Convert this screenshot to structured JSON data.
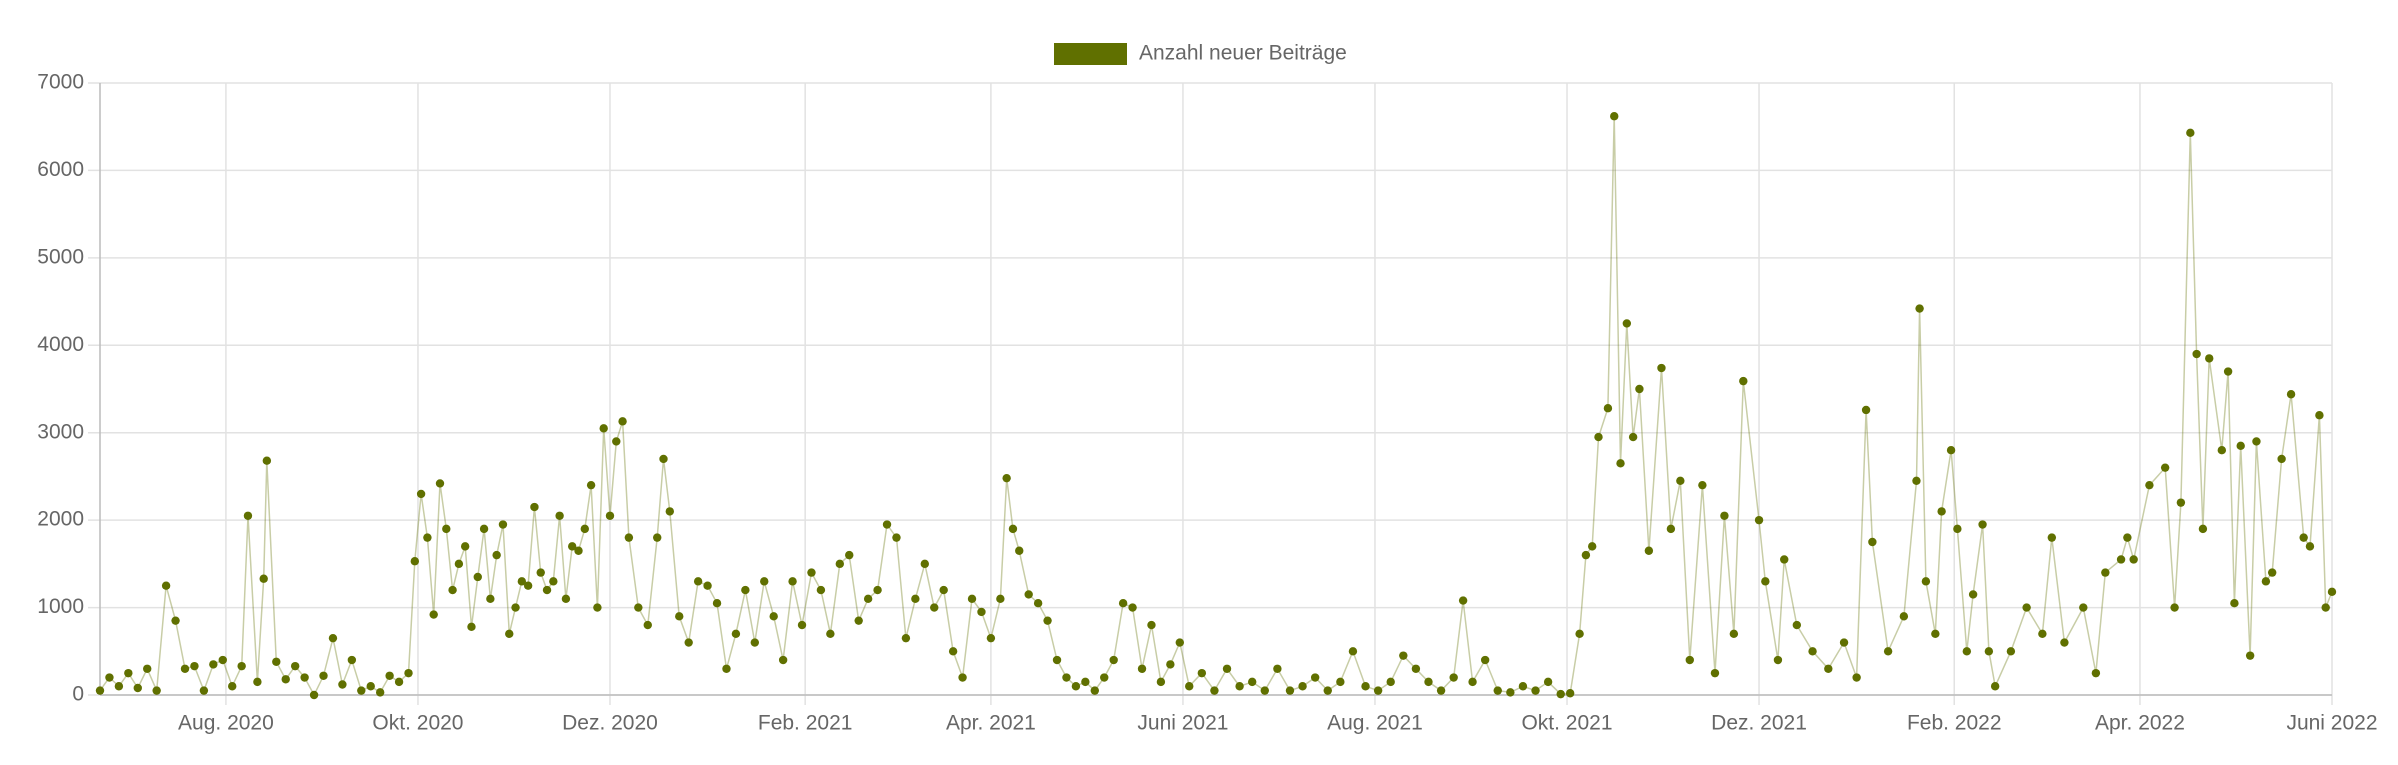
{
  "chart_data": {
    "type": "line",
    "legend": "top",
    "grid": true,
    "xlim": [
      0,
      709
    ],
    "xticks": [
      {
        "value": 40,
        "label": "Aug. 2020"
      },
      {
        "value": 101,
        "label": "Okt. 2020"
      },
      {
        "value": 162,
        "label": "Dez. 2020"
      },
      {
        "value": 224,
        "label": "Feb. 2021"
      },
      {
        "value": 283,
        "label": "Apr. 2021"
      },
      {
        "value": 344,
        "label": "Juni 2021"
      },
      {
        "value": 405,
        "label": "Aug. 2021"
      },
      {
        "value": 466,
        "label": "Okt. 2021"
      },
      {
        "value": 527,
        "label": "Dez. 2021"
      },
      {
        "value": 589,
        "label": "Feb. 2022"
      },
      {
        "value": 648,
        "label": "Apr. 2022"
      },
      {
        "value": 709,
        "label": "Juni 2022"
      }
    ],
    "ylim": [
      0,
      7000
    ],
    "yticks": [
      0,
      1000,
      2000,
      3000,
      4000,
      5000,
      6000,
      7000
    ],
    "x": [
      0,
      3,
      6,
      9,
      12,
      15,
      18,
      21,
      24,
      27,
      30,
      33,
      36,
      39,
      42,
      45,
      47,
      50,
      52,
      53,
      56,
      59,
      62,
      65,
      68,
      71,
      74,
      77,
      80,
      83,
      86,
      89,
      92,
      95,
      98,
      100,
      102,
      104,
      106,
      108,
      110,
      112,
      114,
      116,
      118,
      120,
      122,
      124,
      126,
      128,
      130,
      132,
      134,
      136,
      138,
      140,
      142,
      144,
      146,
      148,
      150,
      152,
      154,
      156,
      158,
      160,
      162,
      164,
      166,
      168,
      171,
      174,
      177,
      179,
      181,
      184,
      187,
      190,
      193,
      196,
      199,
      202,
      205,
      208,
      211,
      214,
      217,
      220,
      223,
      226,
      229,
      232,
      235,
      238,
      241,
      244,
      247,
      250,
      253,
      256,
      259,
      262,
      265,
      268,
      271,
      274,
      277,
      280,
      283,
      286,
      288,
      290,
      292,
      295,
      298,
      301,
      304,
      307,
      310,
      313,
      316,
      319,
      322,
      325,
      328,
      331,
      334,
      337,
      340,
      343,
      346,
      350,
      354,
      358,
      362,
      366,
      370,
      374,
      378,
      382,
      386,
      390,
      394,
      398,
      402,
      406,
      410,
      414,
      418,
      422,
      426,
      430,
      433,
      436,
      440,
      444,
      448,
      452,
      456,
      460,
      464,
      467,
      470,
      472,
      474,
      476,
      479,
      481,
      483,
      485,
      487,
      489,
      492,
      496,
      499,
      502,
      505,
      509,
      513,
      516,
      519,
      522,
      527,
      529,
      533,
      535,
      539,
      544,
      549,
      554,
      558,
      561,
      563,
      568,
      573,
      577,
      578,
      580,
      583,
      585,
      588,
      590,
      593,
      595,
      598,
      600,
      602,
      607,
      612,
      617,
      620,
      624,
      630,
      634,
      637,
      642,
      644,
      646,
      651,
      656,
      659,
      661,
      664,
      666,
      668,
      670,
      674,
      676,
      678,
      680,
      683,
      685,
      688,
      690,
      693,
      696,
      700,
      702,
      705,
      707,
      709
    ],
    "series": [
      {
        "name": "Anzahl neuer Beiträge",
        "color": "#607000",
        "values": [
          50,
          200,
          100,
          250,
          80,
          300,
          50,
          1250,
          850,
          300,
          330,
          50,
          350,
          400,
          100,
          330,
          2050,
          150,
          1330,
          2680,
          380,
          180,
          330,
          200,
          0,
          220,
          650,
          120,
          400,
          50,
          100,
          30,
          220,
          150,
          250,
          1530,
          2300,
          1800,
          920,
          2420,
          1900,
          1200,
          1500,
          1700,
          780,
          1350,
          1900,
          1100,
          1600,
          1950,
          700,
          1000,
          1300,
          1250,
          2150,
          1400,
          1200,
          1300,
          2050,
          1100,
          1700,
          1650,
          1900,
          2400,
          1000,
          3050,
          2050,
          2900,
          3130,
          1800,
          1000,
          800,
          1800,
          2700,
          2100,
          900,
          600,
          1300,
          1250,
          1050,
          300,
          700,
          1200,
          600,
          1300,
          900,
          400,
          1300,
          800,
          1400,
          1200,
          700,
          1500,
          1600,
          850,
          1100,
          1200,
          1950,
          1800,
          650,
          1100,
          1500,
          1000,
          1200,
          500,
          200,
          1100,
          950,
          650,
          1100,
          2480,
          1900,
          1650,
          1150,
          1050,
          850,
          400,
          200,
          100,
          150,
          50,
          200,
          400,
          1050,
          1000,
          300,
          800,
          150,
          350,
          600,
          100,
          250,
          50,
          300,
          100,
          150,
          50,
          300,
          50,
          100,
          200,
          50,
          150,
          500,
          100,
          50,
          150,
          450,
          300,
          150,
          50,
          200,
          1080,
          150,
          400,
          50,
          30,
          100,
          50,
          150,
          10,
          20,
          700,
          1600,
          1700,
          2950,
          3280,
          6620,
          2650,
          4250,
          2950,
          3500,
          1650,
          3740,
          1900,
          2450,
          400,
          2400,
          250,
          2050,
          700,
          3590,
          2000,
          1300,
          400,
          1550,
          800,
          500,
          300,
          600,
          200,
          3260,
          1750,
          500,
          900,
          2450,
          4420,
          1300,
          700,
          2100,
          2800,
          1900,
          500,
          1150,
          1950,
          500,
          100,
          500,
          1000,
          700,
          1800,
          600,
          1000,
          250,
          1400,
          1550,
          1800,
          1550,
          2400,
          2600,
          1000,
          2200,
          6430,
          3900,
          1900,
          3850,
          2800,
          3700,
          1050,
          2850,
          450,
          2900,
          1300,
          1400,
          2700,
          3440,
          1800,
          1700,
          3200,
          1000,
          1180
        ]
      }
    ]
  }
}
